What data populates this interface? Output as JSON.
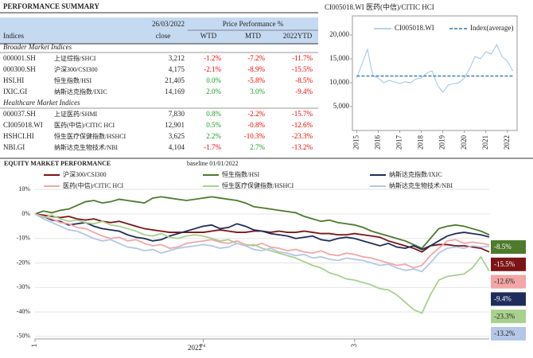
{
  "table": {
    "title": "PERFORMANCE SUMMARY",
    "date": "26/03/2022",
    "group_header": "Price Performance %",
    "columns": [
      "Indices",
      "close",
      "WTD",
      "MTD",
      "2022YTD"
    ],
    "sections": [
      {
        "title": "Broader Market Indices",
        "rows": [
          [
            "000001.SH",
            "上证综指/SHCI",
            "3,212",
            "-1.2%",
            "-7.2%",
            "-11.7%"
          ],
          [
            "000300.SH",
            "沪深300/CSI300",
            "4,175",
            "-2.1%",
            "-8.9%",
            "-15.5%"
          ],
          [
            "HSI.HI",
            "恒生指数/HSI",
            "21,405",
            "0.0%",
            "-5.8%",
            "-8.5%"
          ],
          [
            "IXIC.GI",
            "纳斯达克指数/IXIC",
            "14,169",
            "2.0%",
            "3.0%",
            "-9.4%"
          ]
        ]
      },
      {
        "title": "Healthcare Market Indices",
        "rows": [
          [
            "000037.SH",
            "上证医药/SHMI",
            "7,830",
            "0.8%",
            "-2.2%",
            "-15.7%"
          ],
          [
            "CI005018.WI",
            "医药(中信)/CITIC HCI",
            "12,901",
            "0.5%",
            "-0.8%",
            "-12.6%"
          ],
          [
            "HSHCI.HI",
            "恒生医疗保健指数/HSHCI",
            "3,625",
            "2.2%",
            "-10.3%",
            "-23.3%"
          ],
          [
            "NBI.GI",
            "纳斯达克生物技术/NBI",
            "4,104",
            "-1.7%",
            "2.7%",
            "-13.2%"
          ]
        ]
      }
    ]
  },
  "chart_data": [
    {
      "type": "line",
      "title": "CI005018.WI 医药(中信)/CITIC HCI",
      "xlim": [
        2014.8,
        2022.45
      ],
      "xticks": [
        2015,
        2016,
        2017,
        2018,
        2019,
        2020,
        2021,
        2022
      ],
      "ylim": [
        0,
        24000
      ],
      "yticks": [
        {
          "value": 5000,
          "label": "5,000"
        },
        {
          "value": 10000,
          "label": "10,000"
        },
        {
          "value": 15000,
          "label": "15,000"
        },
        {
          "value": 20000,
          "label": "20,000"
        }
      ],
      "series": [
        {
          "name": "CI005018.WI",
          "color": "#9dc3e6",
          "dash": false,
          "x": [
            2015,
            2015.25,
            2015.5,
            2015.75,
            2016,
            2016.25,
            2016.5,
            2016.75,
            2017,
            2017.25,
            2017.5,
            2017.75,
            2018,
            2018.25,
            2018.5,
            2018.75,
            2019,
            2019.25,
            2019.5,
            2019.75,
            2020,
            2020.25,
            2020.5,
            2020.75,
            2021,
            2021.25,
            2021.5,
            2021.75,
            2022,
            2022.25
          ],
          "values": [
            11000,
            14000,
            17000,
            11500,
            11000,
            10000,
            10500,
            10200,
            9800,
            10200,
            10000,
            10800,
            11000,
            12000,
            12500,
            9500,
            8000,
            9500,
            9800,
            10000,
            11000,
            13000,
            15500,
            15000,
            16500,
            16000,
            18000,
            15500,
            14500,
            12500
          ]
        },
        {
          "name": "Index(average)",
          "color": "#2e75b6",
          "dash": true,
          "x": [
            2015,
            2022.25
          ],
          "values": [
            11400,
            11400
          ]
        }
      ]
    },
    {
      "type": "line",
      "title": "EQUITY MARKET PERFORMANCE",
      "subtitle": "baseline 01/01/2022",
      "xlabel": "2022",
      "categories": [
        "1",
        null,
        null,
        null,
        null,
        null,
        null,
        null,
        null,
        null,
        null,
        null,
        null,
        null,
        null,
        null,
        null,
        null,
        null,
        null,
        "2",
        null,
        null,
        null,
        null,
        null,
        null,
        null,
        null,
        null,
        null,
        null,
        null,
        null,
        null,
        null,
        null,
        null,
        "3",
        null,
        null,
        null,
        null,
        null,
        null,
        null,
        null,
        null,
        null,
        null,
        null,
        null,
        null,
        null,
        null
      ],
      "ylim": [
        -51,
        12
      ],
      "yticks": [
        {
          "value": 10,
          "label": "10%"
        },
        {
          "value": 0,
          "label": "0%"
        },
        {
          "value": -10,
          "label": "-10%"
        },
        {
          "value": -20,
          "label": "-20%"
        },
        {
          "value": -30,
          "label": "-30%"
        },
        {
          "value": -40,
          "label": "-40%"
        },
        {
          "value": -50,
          "label": "-50%"
        }
      ],
      "series": [
        {
          "name": "沪深300/CSI300",
          "color": "#7b1416",
          "end_label": "-15.5%",
          "values": [
            0,
            -0.5,
            -1.0,
            -1.5,
            -1.0,
            -2.0,
            -2.5,
            -2.0,
            -3.0,
            -3.5,
            -3.0,
            -4.0,
            -5.0,
            -6.0,
            -6.5,
            -7.0,
            -7.5,
            -7.5,
            -7.5,
            -7.5,
            -7.5,
            -7.0,
            -6.5,
            -7.0,
            -7.5,
            -7.5,
            -7.0,
            -7.0,
            -7.5,
            -7.0,
            -7.5,
            -7.5,
            -7.0,
            -7.5,
            -8.0,
            -8.0,
            -8.5,
            -8.5,
            -8.0,
            -8.5,
            -9.0,
            -9.5,
            -11.0,
            -12.0,
            -13.0,
            -14.0,
            -15.5,
            -13.0,
            -12.5,
            -12.5,
            -13.0,
            -13.0,
            -13.5,
            -14.0,
            -15.5
          ]
        },
        {
          "name": "恒生指数/HSI",
          "color": "#4e7a2c",
          "end_label": "-8.5%",
          "values": [
            0,
            1.2,
            0.5,
            1.5,
            2.0,
            3.5,
            5.0,
            5.5,
            4.5,
            5.0,
            6.0,
            5.5,
            5.0,
            4.5,
            6.5,
            7.0,
            6.5,
            6.0,
            5.5,
            6.0,
            6.5,
            7.0,
            6.5,
            6.0,
            5.5,
            4.5,
            3.0,
            2.5,
            2.0,
            1.5,
            1.0,
            0.5,
            -1.0,
            -2.0,
            -3.0,
            -2.5,
            -3.5,
            -4.0,
            -4.5,
            -5.5,
            -7.0,
            -8.0,
            -9.0,
            -10.0,
            -11.0,
            -12.5,
            -14.0,
            -10.0,
            -6.0,
            -5.0,
            -4.5,
            -5.0,
            -6.0,
            -7.0,
            -8.5
          ]
        },
        {
          "name": "纳斯达克指数/IXIC",
          "color": "#1f2d5c",
          "end_label": "-9.4%",
          "values": [
            0,
            -1.0,
            -2.5,
            -3.0,
            -4.5,
            -4.0,
            -3.5,
            -5.0,
            -6.0,
            -6.5,
            -7.0,
            -8.5,
            -9.5,
            -10.0,
            -11.0,
            -10.5,
            -9.0,
            -8.0,
            -7.0,
            -6.0,
            -5.0,
            -4.5,
            -6.0,
            -5.5,
            -4.0,
            -5.0,
            -6.5,
            -7.0,
            -8.0,
            -8.5,
            -9.0,
            -10.0,
            -9.5,
            -9.0,
            -10.5,
            -11.0,
            -10.0,
            -9.5,
            -10.0,
            -11.0,
            -12.0,
            -13.0,
            -12.0,
            -13.5,
            -14.0,
            -13.0,
            -14.5,
            -13.0,
            -11.0,
            -9.0,
            -8.0,
            -7.5,
            -8.0,
            -8.5,
            -9.4
          ]
        },
        {
          "name": "医药(中信)/CITIC HCI",
          "color": "#f4a6a6",
          "end_label": "-12.6%",
          "values": [
            0,
            -1.0,
            -2.0,
            -3.5,
            -4.0,
            -5.5,
            -6.0,
            -7.5,
            -9.0,
            -10.0,
            -9.5,
            -11.0,
            -10.5,
            -12.0,
            -13.0,
            -12.5,
            -14.0,
            -13.5,
            -12.0,
            -11.5,
            -11.0,
            -10.5,
            -11.5,
            -12.0,
            -11.0,
            -12.5,
            -13.0,
            -12.0,
            -13.5,
            -14.0,
            -15.0,
            -14.5,
            -15.5,
            -16.0,
            -15.0,
            -16.5,
            -17.0,
            -16.0,
            -16.5,
            -17.5,
            -18.0,
            -19.0,
            -20.0,
            -21.0,
            -20.5,
            -22.0,
            -21.0,
            -17.0,
            -14.0,
            -11.0,
            -10.5,
            -12.0,
            -11.5,
            -12.0,
            -12.6
          ]
        },
        {
          "name": "恒生医疗保健指数/HSHCI",
          "color": "#a9d18e",
          "end_label": "-23.3%",
          "values": [
            0,
            -1.5,
            -0.5,
            -2.0,
            -3.0,
            -2.5,
            -3.5,
            -4.0,
            -3.0,
            -4.5,
            -5.0,
            -6.0,
            -7.0,
            -8.5,
            -9.0,
            -8.0,
            -9.5,
            -10.0,
            -9.0,
            -8.5,
            -9.0,
            -10.0,
            -11.0,
            -10.5,
            -12.0,
            -13.0,
            -12.5,
            -14.0,
            -15.0,
            -16.0,
            -17.0,
            -18.0,
            -19.5,
            -21.0,
            -22.0,
            -24.0,
            -25.0,
            -26.5,
            -27.0,
            -28.0,
            -29.0,
            -30.5,
            -31.0,
            -33.0,
            -36.0,
            -39.0,
            -40.5,
            -33.0,
            -27.0,
            -25.5,
            -25.0,
            -24.5,
            -22.0,
            -17.5,
            -23.3
          ]
        },
        {
          "name": "纳斯达克生物技术/NBI",
          "color": "#b4c7e7",
          "end_label": "-13.2%",
          "values": [
            0,
            -2.0,
            -3.5,
            -5.0,
            -6.5,
            -7.0,
            -8.5,
            -10.0,
            -11.0,
            -10.5,
            -12.0,
            -13.5,
            -14.0,
            -15.0,
            -14.5,
            -16.0,
            -15.0,
            -14.0,
            -13.5,
            -13.0,
            -12.5,
            -13.0,
            -14.0,
            -13.5,
            -12.0,
            -13.0,
            -14.5,
            -15.0,
            -14.0,
            -15.5,
            -16.0,
            -17.0,
            -16.5,
            -18.0,
            -17.5,
            -18.5,
            -19.0,
            -18.0,
            -18.5,
            -19.0,
            -20.0,
            -21.0,
            -20.5,
            -22.0,
            -23.0,
            -22.5,
            -23.5,
            -20.0,
            -16.0,
            -14.0,
            -13.5,
            -14.0,
            -13.0,
            -13.5,
            -13.2
          ]
        }
      ]
    }
  ]
}
